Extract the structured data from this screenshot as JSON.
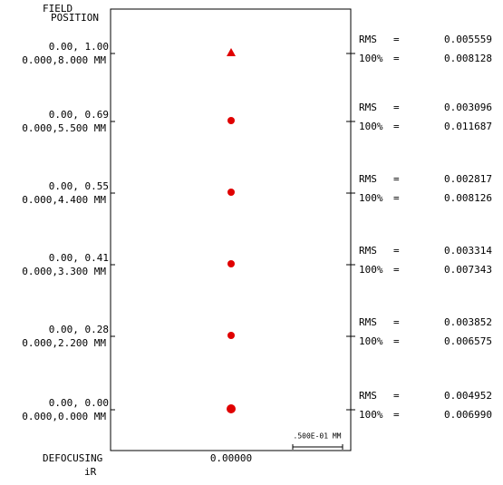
{
  "header": {
    "field": "FIELD",
    "position": "POSITION"
  },
  "labels": {
    "rms": "RMS",
    "eq": "=",
    "pct": "100%"
  },
  "fields": [
    {
      "relative": "0.00, 1.00",
      "position": "0.000,8.000 MM",
      "rms": "0.005559",
      "pct100": "0.008128"
    },
    {
      "relative": "0.00, 0.69",
      "position": "0.000,5.500 MM",
      "rms": "0.003096",
      "pct100": "0.011687"
    },
    {
      "relative": "0.00, 0.55",
      "position": "0.000,4.400 MM",
      "rms": "0.002817",
      "pct100": "0.008126"
    },
    {
      "relative": "0.00, 0.41",
      "position": "0.000,3.300 MM",
      "rms": "0.003314",
      "pct100": "0.007343"
    },
    {
      "relative": "0.00, 0.28",
      "position": "0.000,2.200 MM",
      "rms": "0.003852",
      "pct100": "0.006575"
    },
    {
      "relative": "0.00, 0.00",
      "position": "0.000,0.000 MM",
      "rms": "0.004952",
      "pct100": "0.006990"
    }
  ],
  "scale_bar": ".500E-01 MM",
  "footer": {
    "defocusing": "DEFOCUSING",
    "value": "0.00000",
    "units": "iR"
  }
}
